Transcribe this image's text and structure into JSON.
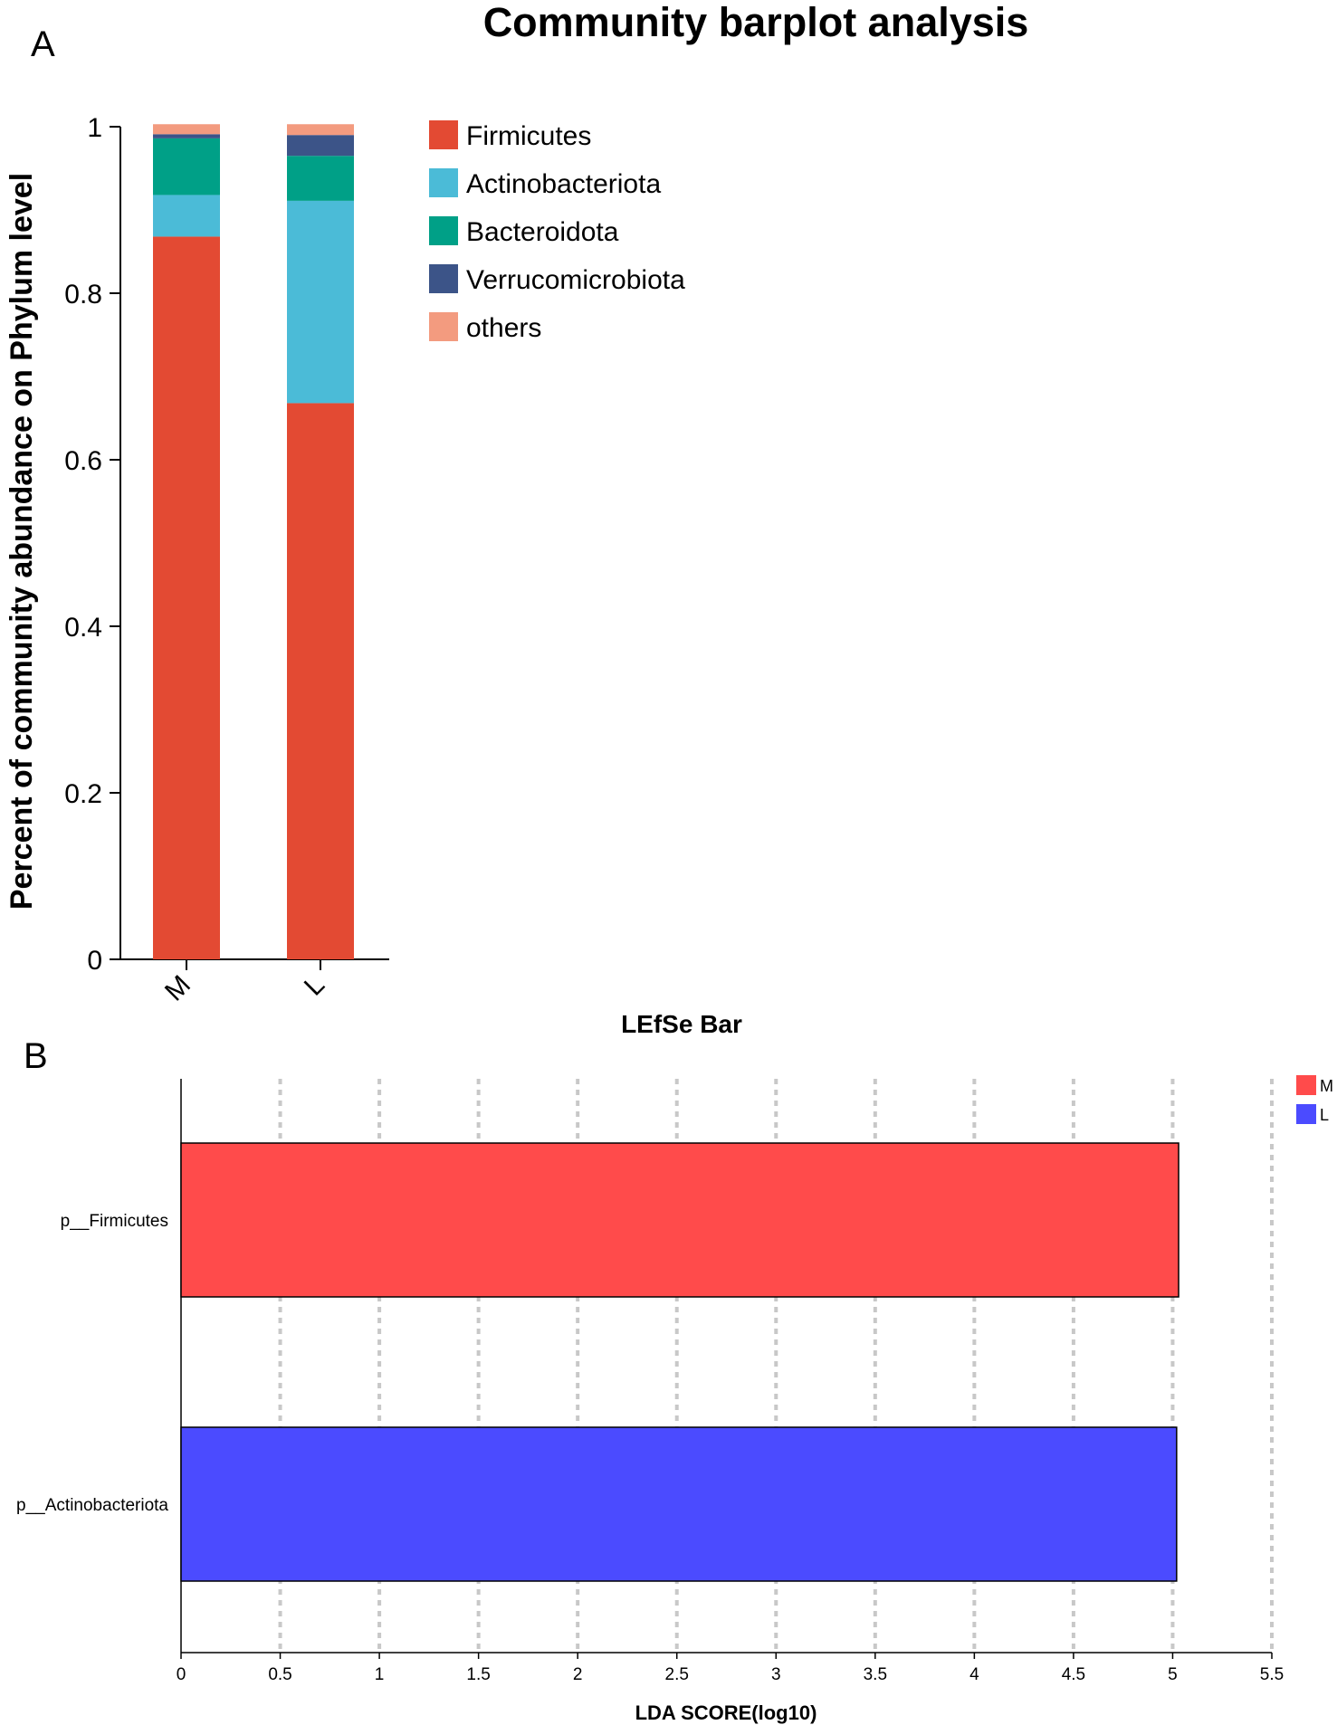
{
  "panels": {
    "a_label": "A",
    "b_label": "B"
  },
  "chart_data": [
    {
      "type": "bar",
      "stacked": true,
      "title": "Community barplot analysis",
      "xlabel": "",
      "ylabel": "Percent of community abundance on Phylum level",
      "ylim": [
        0,
        1
      ],
      "yticks": [
        "0",
        "0.2",
        "0.4",
        "0.6",
        "0.8",
        "1"
      ],
      "categories": [
        "M",
        "L"
      ],
      "series": [
        {
          "name": "Firmicutes",
          "color": "#e34a33",
          "values": [
            0.868,
            0.668
          ]
        },
        {
          "name": "Actinobacteriota",
          "color": "#4bbbd7",
          "values": [
            0.05,
            0.243
          ]
        },
        {
          "name": "Bacteroidota",
          "color": "#00a087",
          "values": [
            0.068,
            0.054
          ]
        },
        {
          "name": "Verrucomicrobiota",
          "color": "#3c5488",
          "values": [
            0.005,
            0.025
          ]
        },
        {
          "name": "others",
          "color": "#f39b7f",
          "values": [
            0.012,
            0.013
          ]
        }
      ],
      "legend_position": "right"
    },
    {
      "type": "bar",
      "orientation": "horizontal",
      "title": "LEfSe Bar",
      "xlabel": "LDA SCORE(log10)",
      "ylabel": "",
      "xlim": [
        0,
        5.5
      ],
      "xticks": [
        "0",
        "0.5",
        "1",
        "1.5",
        "2",
        "2.5",
        "3",
        "3.5",
        "4",
        "4.5",
        "5",
        "5.5"
      ],
      "categories": [
        "p__Firmicutes",
        "p__Actinobacteriota"
      ],
      "values": [
        5.03,
        5.02
      ],
      "groups": [
        "M",
        "L"
      ],
      "legend": [
        {
          "name": "M",
          "color": "#ff4b4b"
        },
        {
          "name": "L",
          "color": "#4b4bff"
        }
      ],
      "legend_position": "top-right",
      "grid": true
    }
  ]
}
